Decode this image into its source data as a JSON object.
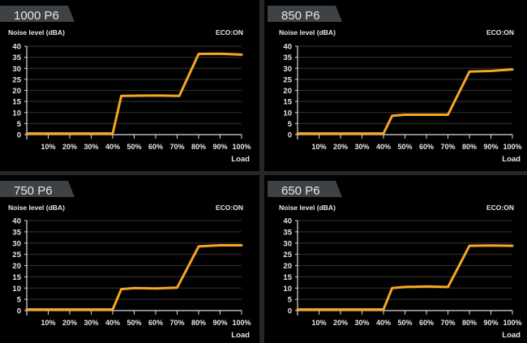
{
  "chart_data": [
    {
      "type": "line",
      "title": "1000 P6",
      "ylabel": "Noise level (dBA)",
      "xlabel": "Load",
      "annotation": "ECO:ON",
      "ylim": [
        0,
        40
      ],
      "yticks": [
        "0",
        "5",
        "10",
        "15",
        "20",
        "25",
        "30",
        "35",
        "40"
      ],
      "xticks": [
        "10%",
        "20%",
        "30%",
        "40%",
        "50%",
        "60%",
        "70%",
        "80%",
        "90%",
        "100%"
      ],
      "grid": true,
      "line_color": "#f5a623",
      "x": [
        0,
        40,
        44,
        60,
        71,
        80,
        90,
        100
      ],
      "y": [
        0.5,
        0.5,
        17.5,
        17.7,
        17.5,
        36.5,
        36.6,
        36.2
      ]
    },
    {
      "type": "line",
      "title": "850 P6",
      "ylabel": "Noise level (dBA)",
      "xlabel": "Load",
      "annotation": "ECO:ON",
      "ylim": [
        0,
        40
      ],
      "yticks": [
        "0",
        "5",
        "10",
        "15",
        "20",
        "25",
        "30",
        "35",
        "40"
      ],
      "xticks": [
        "10%",
        "20%",
        "30%",
        "40%",
        "50%",
        "60%",
        "70%",
        "80%",
        "90%",
        "100%"
      ],
      "grid": true,
      "line_color": "#f5a623",
      "x": [
        0,
        40,
        44,
        50,
        70,
        80,
        90,
        100
      ],
      "y": [
        0.5,
        0.5,
        8.5,
        9,
        9,
        28.5,
        28.8,
        29.5
      ]
    },
    {
      "type": "line",
      "title": "750 P6",
      "ylabel": "Noise level (dBA)",
      "xlabel": "Load",
      "annotation": "ECO:ON",
      "ylim": [
        0,
        40
      ],
      "yticks": [
        "0",
        "5",
        "10",
        "15",
        "20",
        "25",
        "30",
        "35",
        "40"
      ],
      "xticks": [
        "10%",
        "20%",
        "30%",
        "40%",
        "50%",
        "60%",
        "70%",
        "80%",
        "90%",
        "100%"
      ],
      "grid": true,
      "line_color": "#f5a623",
      "x": [
        0,
        40,
        44,
        50,
        60,
        70,
        80,
        90,
        100
      ],
      "y": [
        0.5,
        0.5,
        9.5,
        10,
        9.8,
        10.2,
        28.5,
        29,
        29
      ]
    },
    {
      "type": "line",
      "title": "650 P6",
      "ylabel": "Noise level (dBA)",
      "xlabel": "Load",
      "annotation": "ECO:ON",
      "ylim": [
        0,
        40
      ],
      "yticks": [
        "0",
        "5",
        "10",
        "15",
        "20",
        "25",
        "30",
        "35",
        "40"
      ],
      "xticks": [
        "10%",
        "20%",
        "30%",
        "40%",
        "50%",
        "60%",
        "70%",
        "80%",
        "90%",
        "100%"
      ],
      "grid": true,
      "line_color": "#f5a623",
      "x": [
        0,
        40,
        44,
        50,
        60,
        70,
        80,
        90,
        100
      ],
      "y": [
        0.5,
        0.5,
        10,
        10.5,
        10.7,
        10.5,
        28.8,
        28.9,
        28.8
      ]
    }
  ]
}
